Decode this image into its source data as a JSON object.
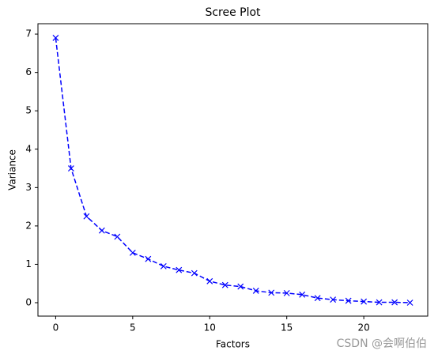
{
  "chart_data": {
    "type": "line",
    "title": "Scree Plot",
    "x_label": "Factors",
    "y_label": "Variance",
    "x": [
      0,
      1,
      2,
      3,
      4,
      5,
      6,
      7,
      8,
      9,
      10,
      11,
      12,
      13,
      14,
      15,
      16,
      17,
      18,
      19,
      20,
      21,
      22,
      23
    ],
    "series": [
      {
        "name": "Variance",
        "color": "#0000ff",
        "values": [
          6.9,
          3.5,
          2.25,
          1.88,
          1.72,
          1.3,
          1.14,
          0.95,
          0.85,
          0.77,
          0.56,
          0.46,
          0.42,
          0.31,
          0.26,
          0.25,
          0.21,
          0.12,
          0.08,
          0.05,
          0.03,
          0.01,
          0.01,
          0.0
        ]
      }
    ],
    "xlim": [
      -1.15,
      24.15
    ],
    "ylim": [
      -0.35,
      7.27
    ],
    "xticks": [
      0,
      5,
      10,
      15,
      20
    ],
    "yticks": [
      0,
      1,
      2,
      3,
      4,
      5,
      6,
      7
    ],
    "line_style": "dashed",
    "marker": "x",
    "annotation": "CSDN @会啊伯伯"
  }
}
